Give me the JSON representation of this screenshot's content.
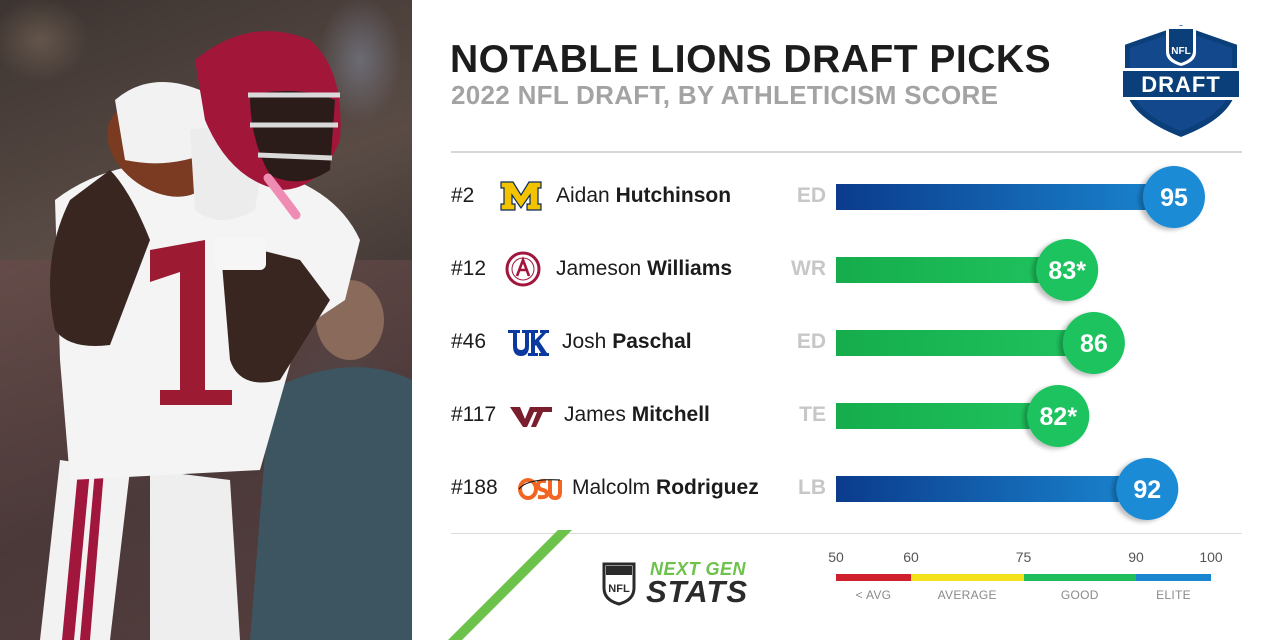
{
  "header": {
    "title": "NOTABLE LIONS DRAFT PICKS",
    "subtitle": "2022 NFL DRAFT, BY ATHLETICISM SCORE"
  },
  "logo": {
    "shield_text": "NFL",
    "banner_text": "DRAFT"
  },
  "players": [
    {
      "pick": "#2",
      "first": "Aidan",
      "last": "Hutchinson",
      "pos": "ED",
      "score_label": "95",
      "school_icon": "michigan-block-m-icon",
      "school_mark": "M"
    },
    {
      "pick": "#12",
      "first": "Jameson",
      "last": "Williams",
      "pos": "WR",
      "score_label": "83*",
      "school_icon": "alabama-crest-icon",
      "school_mark": "A"
    },
    {
      "pick": "#46",
      "first": "Josh",
      "last": "Paschal",
      "pos": "ED",
      "score_label": "86",
      "school_icon": "kentucky-uk-icon",
      "school_mark": "UK"
    },
    {
      "pick": "#117",
      "first": "James",
      "last": "Mitchell",
      "pos": "TE",
      "score_label": "82*",
      "school_icon": "virginia-tech-vt-icon",
      "school_mark": "VT"
    },
    {
      "pick": "#188",
      "first": "Malcolm",
      "last": "Rodriguez",
      "pos": "LB",
      "score_label": "92",
      "school_icon": "oklahoma-state-osu-icon",
      "school_mark": "OSU"
    }
  ],
  "chart_data": {
    "type": "bar",
    "orientation": "horizontal",
    "title": "NOTABLE LIONS DRAFT PICKS",
    "subtitle": "2022 NFL DRAFT, BY ATHLETICISM SCORE",
    "categories": [
      "Aidan Hutchinson",
      "Jameson Williams",
      "Josh Paschal",
      "James Mitchell",
      "Malcolm Rodriguez"
    ],
    "values": [
      95,
      83,
      86,
      82,
      92
    ],
    "xlim": [
      50,
      100
    ],
    "scale_ticks": [
      50,
      60,
      75,
      90,
      100
    ],
    "tiers": [
      {
        "label": "< AVG",
        "from": 50,
        "to": 60,
        "color": "#d0202e"
      },
      {
        "label": "AVERAGE",
        "from": 60,
        "to": 75,
        "color": "#f4e31c"
      },
      {
        "label": "GOOD",
        "from": 75,
        "to": 90,
        "color": "#1fbe5a"
      },
      {
        "label": "ELITE",
        "from": 90,
        "to": 100,
        "color": "#1a86d0"
      }
    ],
    "grid": false,
    "legend": "bottom"
  },
  "brand": {
    "next": "NEXT GEN",
    "stats": "STATS",
    "shield_text": "NFL"
  },
  "colors": {
    "elite_dark": "#0b3b8c",
    "elite_light": "#1a86d0",
    "good_light": "#1fbe5a",
    "good_bar": "#18b24e",
    "good_circle": "#1fc35f",
    "elite_circle": "#1c8bd6",
    "accent": "#6cc24a"
  }
}
